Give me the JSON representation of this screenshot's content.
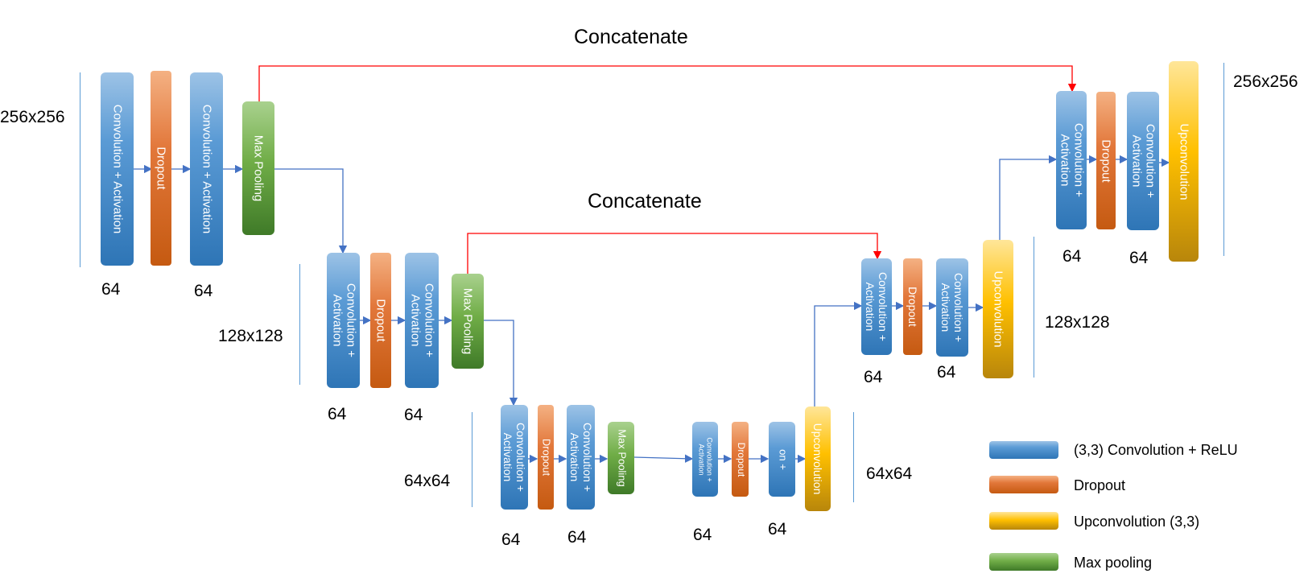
{
  "titles": {
    "concat_top": "Concatenate",
    "concat_mid": "Concatenate"
  },
  "blocks": {
    "e1_conv1": "Convolution + Activation",
    "e1_drop": "Dropout",
    "e1_conv2": "Convolution + Activation",
    "e1_pool": "Max Pooling",
    "e2_conv1": "Convolution + Activation",
    "e2_drop": "Dropout",
    "e2_conv2": "Convolution + Activation",
    "e2_pool": "Max Pooling",
    "e3_conv1": "Convolution + Activation",
    "e3_drop": "Dropout",
    "e3_conv2": "Convolution + Activation",
    "e3_pool": "Max Pooling",
    "b_conv1": "Convolution + Activation",
    "b_drop": "Dropout",
    "b_conv2": "on +",
    "b_up": "Upconvolution",
    "d2_conv1": "Convolution + Activation",
    "d2_drop": "Dropout",
    "d2_conv2": "Convolution + Activation",
    "d2_up": "Upconvolution",
    "d1_conv1": "Convolution + Activation",
    "d1_drop": "Dropout",
    "d1_conv2": "Convolution + Activation",
    "d1_up": "Upconvolution"
  },
  "sizes": {
    "s256_left": "256x256",
    "s128_left": "128x128",
    "s64_left": "64x64",
    "s64_right": "64x64",
    "s128_right": "128x128",
    "s256_right": "256x256"
  },
  "counts": {
    "c1": "64",
    "c2": "64",
    "c3": "64",
    "c4": "64",
    "c5": "64",
    "c6": "64",
    "c7": "64",
    "c8": "64",
    "c9": "64",
    "c10": "64",
    "c11": "64",
    "c12": "64"
  },
  "legend": [
    {
      "label": "(3,3) Convolution + ReLU",
      "color": "#2e75b6"
    },
    {
      "label": "Dropout",
      "color": "#c55a11"
    },
    {
      "label": "Upconvolution (3,3)",
      "color": "#ffc000"
    },
    {
      "label": "Max pooling",
      "color": "#70ad47"
    }
  ],
  "colors": {
    "arrow": "#4472c4",
    "skip": "#ff0000"
  }
}
